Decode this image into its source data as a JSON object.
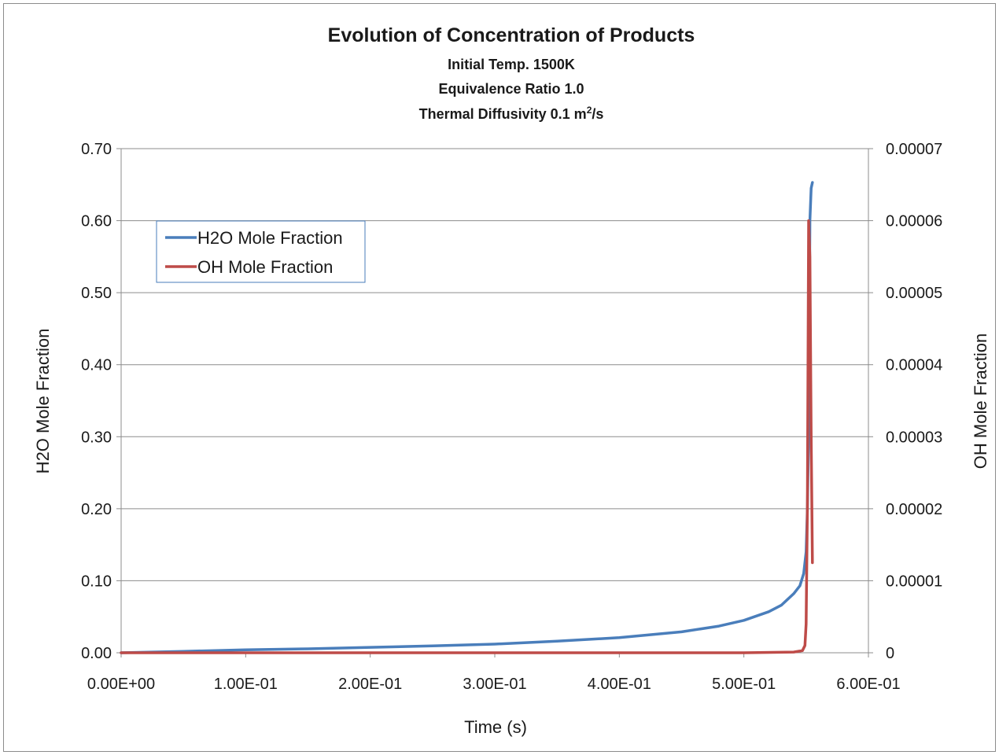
{
  "chart_data": {
    "type": "line",
    "title": "Evolution of Concentration of Products",
    "subtitles": [
      "Initial Temp. 1500K",
      "Equivalence Ratio 1.0"
    ],
    "subtitle_diffusivity": {
      "prefix": "Thermal Diffusivity 0.1 m",
      "superscript": "2",
      "suffix": "/s"
    },
    "xlabel": "Time (s)",
    "ylabel_left": "H2O Mole Fraction",
    "ylabel_right": "OH Mole Fraction",
    "xlim": [
      0,
      0.6
    ],
    "ylim_left": [
      0,
      0.7
    ],
    "ylim_right": [
      0,
      7e-05
    ],
    "x_ticks": [
      "0.00E+00",
      "1.00E-01",
      "2.00E-01",
      "3.00E-01",
      "4.00E-01",
      "5.00E-01",
      "6.00E-01"
    ],
    "y_left_ticks": [
      "0.00",
      "0.10",
      "0.20",
      "0.30",
      "0.40",
      "0.50",
      "0.60",
      "0.70"
    ],
    "y_right_ticks": [
      "0",
      "0.00001",
      "0.00002",
      "0.00003",
      "0.00004",
      "0.00005",
      "0.00006",
      "0.00007"
    ],
    "grid": true,
    "legend_position": "upper-left",
    "series": [
      {
        "name": "H2O Mole Fraction",
        "axis": "left",
        "color": "#4a7ebb",
        "x": [
          0,
          0.05,
          0.1,
          0.15,
          0.2,
          0.25,
          0.3,
          0.35,
          0.4,
          0.45,
          0.48,
          0.5,
          0.52,
          0.53,
          0.54,
          0.545,
          0.548,
          0.55,
          0.551,
          0.552,
          0.553,
          0.554,
          0.555
        ],
        "y": [
          0.0,
          0.002,
          0.004,
          0.0055,
          0.0075,
          0.0095,
          0.012,
          0.016,
          0.021,
          0.029,
          0.037,
          0.045,
          0.057,
          0.066,
          0.082,
          0.093,
          0.11,
          0.14,
          0.2,
          0.3,
          0.6,
          0.645,
          0.653
        ]
      },
      {
        "name": "OH Mole Fraction",
        "axis": "right",
        "color": "#be4b48",
        "x": [
          0,
          0.1,
          0.2,
          0.3,
          0.4,
          0.5,
          0.54,
          0.547,
          0.549,
          0.55,
          0.551,
          0.552,
          0.553,
          0.554,
          0.555
        ],
        "y": [
          0,
          0,
          0,
          0,
          0,
          0,
          1e-07,
          3e-07,
          1e-06,
          4e-06,
          2e-05,
          6e-05,
          5.5e-05,
          3e-05,
          1.25e-05
        ]
      }
    ]
  }
}
